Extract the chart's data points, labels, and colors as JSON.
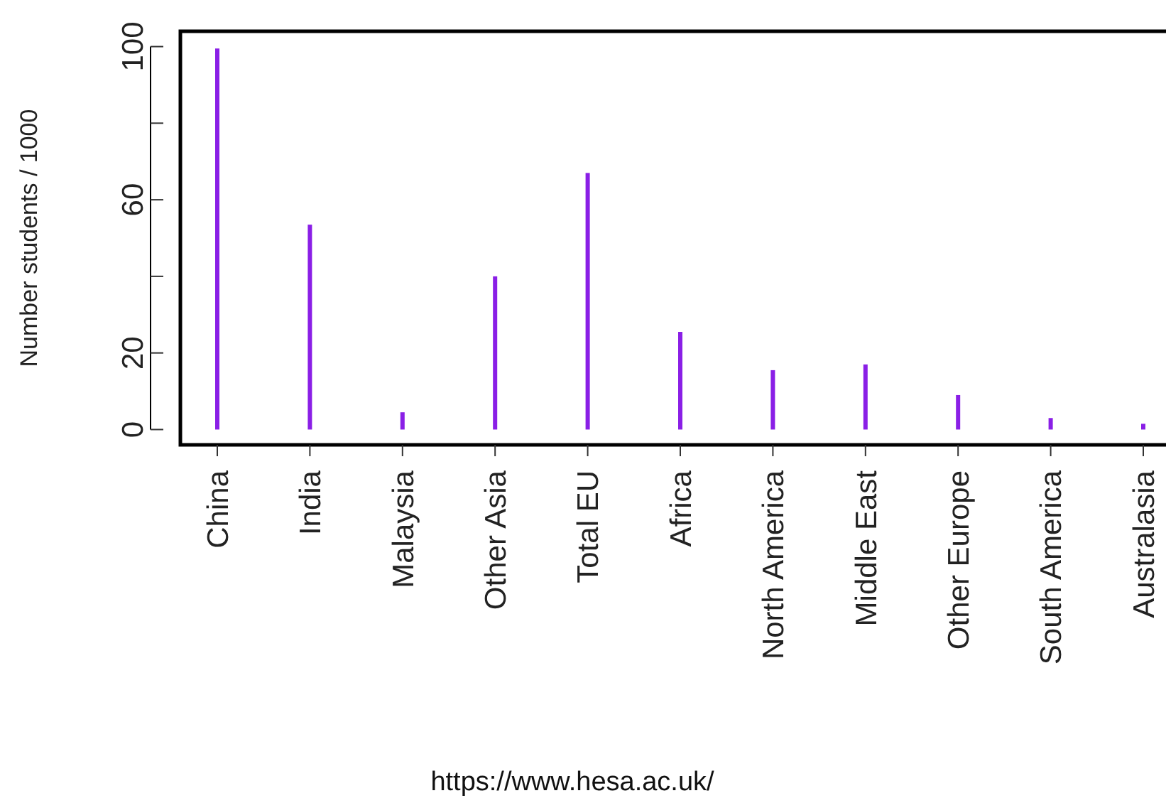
{
  "chart_data": {
    "type": "bar",
    "ylabel": "Number students / 1000",
    "categories": [
      "China",
      "India",
      "Malaysia",
      "Other Asia",
      "Total EU",
      "Africa",
      "North America",
      "Middle East",
      "Other Europe",
      "South America",
      "Australasia"
    ],
    "values": [
      99.5,
      53.5,
      4.5,
      40,
      67,
      25.5,
      15.5,
      17,
      9,
      3,
      1.5
    ],
    "color": "#8a1fe6",
    "ylim": [
      -4,
      104
    ],
    "yticks": [
      0,
      20,
      {
        "value": 40,
        "label": null
      },
      60,
      {
        "value": 80,
        "label": null
      },
      100
    ],
    "grid": false,
    "annotations": [
      "https://www.hesa.ac.uk/"
    ]
  }
}
